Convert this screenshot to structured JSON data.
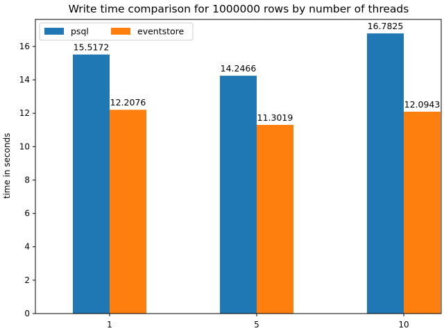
{
  "chart_data": {
    "type": "bar",
    "title": "Write time comparison for 1000000 rows by number of threads",
    "xlabel": "",
    "ylabel": "time in seconds",
    "categories": [
      "1",
      "5",
      "10"
    ],
    "series": [
      {
        "name": "psql",
        "color": "#1f77b4",
        "values": [
          15.5172,
          14.2466,
          16.7825
        ],
        "labels": [
          "15.5172",
          "14.2466",
          "16.7825"
        ]
      },
      {
        "name": "eventstore",
        "color": "#ff7f0e",
        "values": [
          12.2076,
          11.3019,
          12.0943
        ],
        "labels": [
          "12.2076",
          "11.3019",
          "12.0943"
        ]
      }
    ],
    "ylim": [
      0,
      17.62
    ],
    "yticks": [
      0,
      2,
      4,
      6,
      8,
      10,
      12,
      14,
      16
    ],
    "ytick_labels": [
      "0",
      "2",
      "4",
      "6",
      "8",
      "10",
      "12",
      "14",
      "16"
    ],
    "legend_position": "top-left",
    "grid": false
  }
}
